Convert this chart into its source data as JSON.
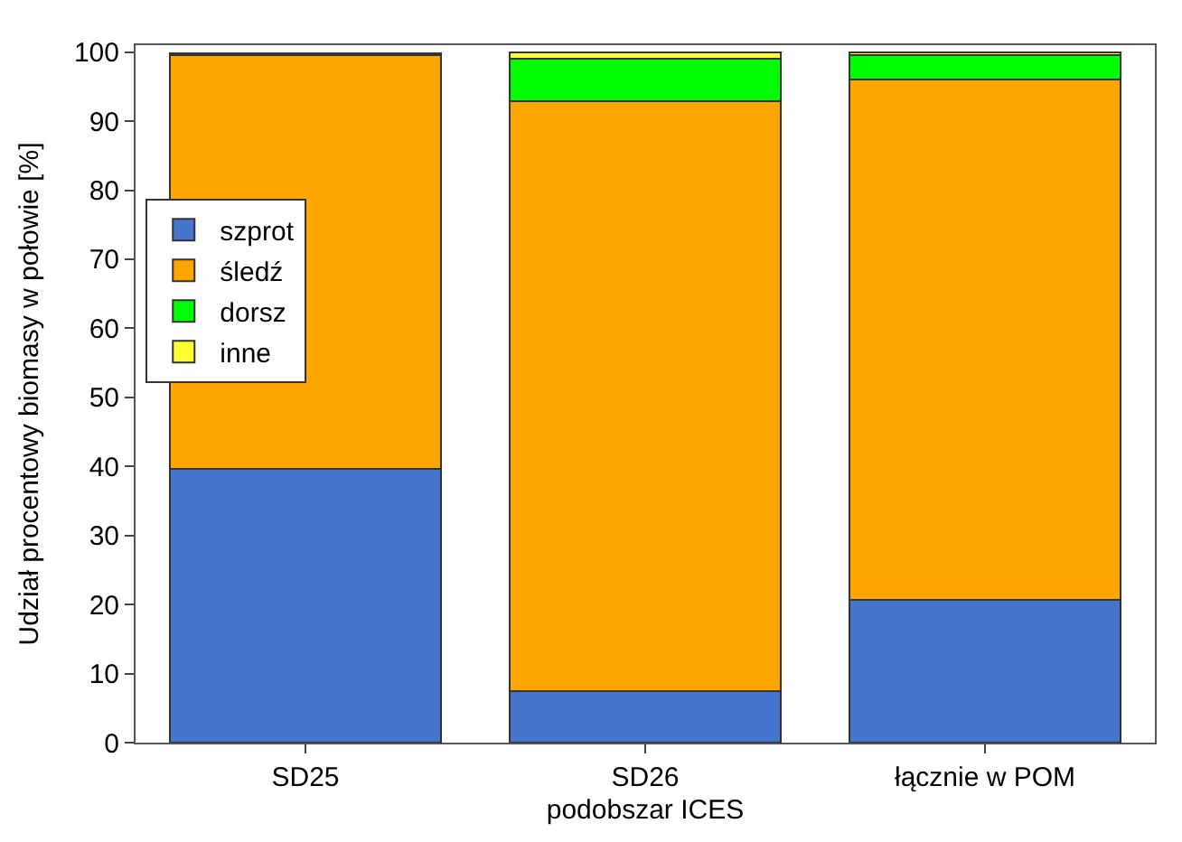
{
  "chart_data": {
    "type": "bar",
    "stacked": true,
    "xlabel": "podobszar ICES",
    "ylabel": "Udział procentowy biomasy w połowie [%]",
    "categories": [
      "SD25",
      "SD26",
      "łącznie w POM"
    ],
    "series": [
      {
        "name": "szprot",
        "color": "#4575cd",
        "values": [
          39.7,
          7.4,
          20.7
        ]
      },
      {
        "name": "śledź",
        "color": "#ffa500",
        "values": [
          59.8,
          85.5,
          75.3
        ]
      },
      {
        "name": "dorsz",
        "color": "#00ff00",
        "values": [
          0.3,
          6.1,
          3.5
        ]
      },
      {
        "name": "inne",
        "color": "#ffff33",
        "values": [
          null,
          1.0,
          0.5
        ]
      }
    ],
    "ylim": [
      0,
      101
    ],
    "yticks": [
      0,
      10,
      20,
      30,
      40,
      50,
      60,
      70,
      80,
      90,
      100
    ],
    "legend": "top left"
  }
}
